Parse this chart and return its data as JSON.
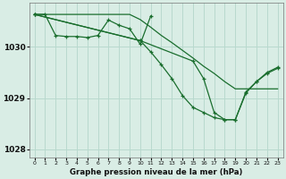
{
  "background_color": "#d9ede5",
  "grid_color": "#b8d9ce",
  "line_color": "#1a6e2e",
  "ylim": [
    1027.85,
    1030.85
  ],
  "xlim": [
    -0.5,
    23.5
  ],
  "yticks": [
    1028,
    1029,
    1030
  ],
  "xticks": [
    0,
    1,
    2,
    3,
    4,
    5,
    6,
    7,
    8,
    9,
    10,
    11,
    12,
    13,
    14,
    15,
    16,
    17,
    18,
    19,
    20,
    21,
    22,
    23
  ],
  "xlabel": "Graphe pression niveau de la mer (hPa)",
  "s1_x": [
    0,
    1,
    2,
    3,
    4,
    5,
    6,
    7,
    8,
    9,
    10,
    11
  ],
  "s1_y": [
    1030.63,
    1030.63,
    1030.22,
    1030.2,
    1030.2,
    1030.18,
    1030.22,
    1030.52,
    1030.42,
    1030.35,
    1030.05,
    1030.6
  ],
  "s2_x": [
    0,
    1,
    2,
    3,
    4,
    5,
    6,
    7,
    8,
    9,
    10,
    11,
    12,
    13,
    14,
    15,
    16,
    17,
    18,
    19,
    20,
    21,
    22,
    23
  ],
  "s2_y": [
    1030.63,
    1030.63,
    1030.63,
    1030.63,
    1030.63,
    1030.63,
    1030.63,
    1030.63,
    1030.63,
    1030.63,
    1030.53,
    1030.38,
    1030.22,
    1030.08,
    1029.93,
    1029.78,
    1029.62,
    1029.48,
    1029.32,
    1029.18,
    1029.18,
    1029.18,
    1029.18,
    1029.18
  ],
  "s3_x": [
    0,
    10,
    11,
    12,
    13,
    14,
    15,
    16,
    17,
    18,
    19,
    20,
    21,
    22,
    23
  ],
  "s3_y": [
    1030.63,
    1030.12,
    1029.9,
    1029.65,
    1029.38,
    1029.05,
    1028.82,
    1028.72,
    1028.62,
    1028.58,
    1028.58,
    1029.1,
    1029.32,
    1029.48,
    1029.58
  ],
  "s4_x": [
    0,
    10,
    15,
    16,
    17,
    18,
    19,
    20,
    21,
    22,
    23
  ],
  "s4_y": [
    1030.63,
    1030.12,
    1029.72,
    1029.38,
    1028.72,
    1028.58,
    1028.58,
    1029.12,
    1029.32,
    1029.5,
    1029.6
  ]
}
